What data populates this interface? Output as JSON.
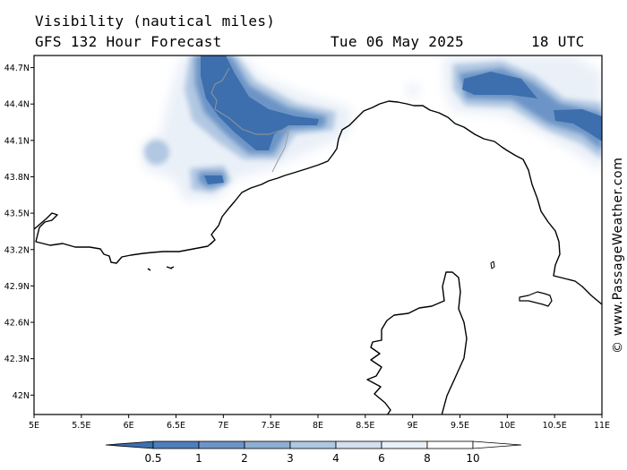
{
  "header": {
    "title": "Visibility (nautical miles)",
    "subtitle": "GFS 132 Hour Forecast",
    "date": "Tue 06 May 2025",
    "time": "18 UTC"
  },
  "credit": "© www.PassageWeather.com",
  "map": {
    "lon_labels": [
      "5E",
      "5.5E",
      "6E",
      "6.5E",
      "7E",
      "7.5E",
      "8E",
      "8.5E",
      "9E",
      "9.5E",
      "10E",
      "10.5E",
      "11E"
    ],
    "lat_labels": [
      "44.7N",
      "44.4N",
      "44.1N",
      "43.8N",
      "43.5N",
      "43.2N",
      "42.9N",
      "42.6N",
      "42.3N",
      "42N"
    ],
    "lon_range": [
      5.0,
      11.0
    ],
    "lat_range": [
      41.84,
      44.8
    ]
  },
  "colorbar": {
    "ticks": [
      "0.5",
      "1",
      "2",
      "3",
      "4",
      "6",
      "8",
      "10"
    ],
    "colors": [
      "#3d6fae",
      "#4f7fbb",
      "#6c94c6",
      "#8eaed4",
      "#b1c7e2",
      "#d3e0ef",
      "#eaf0f8",
      "#ffffff"
    ]
  }
}
